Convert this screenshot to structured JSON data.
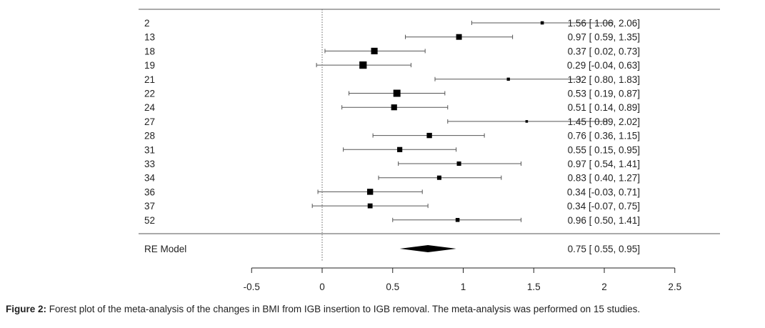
{
  "chart_data": {
    "type": "forest",
    "title": "",
    "xlabel": "",
    "ylabel": "",
    "xlim": [
      -0.5,
      2.5
    ],
    "xticks": [
      -0.5,
      0,
      0.5,
      1,
      1.5,
      2,
      2.5
    ],
    "xtick_labels": [
      "-0.5",
      "0",
      "0.5",
      "1",
      "1.5",
      "2",
      "2.5"
    ],
    "reference_line": 0,
    "studies": [
      {
        "label": "2",
        "estimate": 1.56,
        "lower": 1.06,
        "upper": 2.06,
        "text": "1.56 [ 1.06, 2.06]"
      },
      {
        "label": "13",
        "estimate": 0.97,
        "lower": 0.59,
        "upper": 1.35,
        "text": "0.97 [ 0.59, 1.35]"
      },
      {
        "label": "18",
        "estimate": 0.37,
        "lower": 0.02,
        "upper": 0.73,
        "text": "0.37 [ 0.02, 0.73]"
      },
      {
        "label": "19",
        "estimate": 0.29,
        "lower": -0.04,
        "upper": 0.63,
        "text": "0.29 [-0.04, 0.63]"
      },
      {
        "label": "21",
        "estimate": 1.32,
        "lower": 0.8,
        "upper": 1.83,
        "text": "1.32 [ 0.80, 1.83]"
      },
      {
        "label": "22",
        "estimate": 0.53,
        "lower": 0.19,
        "upper": 0.87,
        "text": "0.53 [ 0.19, 0.87]"
      },
      {
        "label": "24",
        "estimate": 0.51,
        "lower": 0.14,
        "upper": 0.89,
        "text": "0.51 [ 0.14, 0.89]"
      },
      {
        "label": "27",
        "estimate": 1.45,
        "lower": 0.89,
        "upper": 2.02,
        "text": "1.45 [ 0.89, 2.02]"
      },
      {
        "label": "28",
        "estimate": 0.76,
        "lower": 0.36,
        "upper": 1.15,
        "text": "0.76 [ 0.36, 1.15]"
      },
      {
        "label": "31",
        "estimate": 0.55,
        "lower": 0.15,
        "upper": 0.95,
        "text": "0.55 [ 0.15, 0.95]"
      },
      {
        "label": "33",
        "estimate": 0.97,
        "lower": 0.54,
        "upper": 1.41,
        "text": "0.97 [ 0.54, 1.41]"
      },
      {
        "label": "34",
        "estimate": 0.83,
        "lower": 0.4,
        "upper": 1.27,
        "text": "0.83 [ 0.40, 1.27]"
      },
      {
        "label": "36",
        "estimate": 0.34,
        "lower": -0.03,
        "upper": 0.71,
        "text": "0.34 [-0.03, 0.71]"
      },
      {
        "label": "37",
        "estimate": 0.34,
        "lower": -0.07,
        "upper": 0.75,
        "text": "0.34 [-0.07, 0.75]"
      },
      {
        "label": "52",
        "estimate": 0.96,
        "lower": 0.5,
        "upper": 1.41,
        "text": "0.96 [ 0.50, 1.41]"
      }
    ],
    "summary": {
      "label": "RE Model",
      "estimate": 0.75,
      "lower": 0.55,
      "upper": 0.95,
      "text": "0.75 [ 0.55, 0.95]"
    }
  },
  "caption": {
    "label": "Figure 2:",
    "text": " Forest plot of the meta-analysis of the changes in BMI from IGB insertion to IGB removal. The meta-analysis was performed on 15 studies."
  },
  "colors": {
    "ink": "#222222",
    "line": "#555555",
    "background": "#ffffff"
  }
}
